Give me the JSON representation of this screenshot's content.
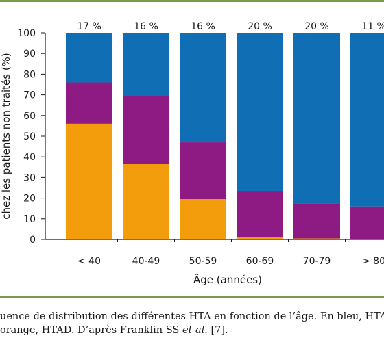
{
  "chart_data": {
    "type": "bar",
    "stacked": true,
    "categories": [
      "< 40",
      "40-49",
      "50-59",
      "60-69",
      "70-79",
      "> 80"
    ],
    "top_labels": [
      "17 %",
      "16 %",
      "16 %",
      "20 %",
      "20 %",
      "11 %"
    ],
    "series": [
      {
        "values": [
          56,
          36.5,
          19.5,
          1,
          0.5,
          0
        ],
        "color": "#f39c0c"
      },
      {
        "values": [
          20,
          33,
          27.5,
          22.5,
          17,
          16
        ],
        "color": "#8e1a84"
      },
      {
        "values": [
          24,
          30.5,
          53,
          76.5,
          82.5,
          84
        ],
        "color": "#0f6eb4"
      }
    ],
    "xlabel": "Âge (années)",
    "ylabel": "chez les patients non traités (%)",
    "ylim": [
      0,
      100
    ],
    "yticks": [
      0,
      10,
      20,
      30,
      40,
      50,
      60,
      70,
      80,
      90,
      100
    ],
    "grid": false
  },
  "caption": {
    "line1": "uence de distribution des différentes HTA en fonction de l’âge. En bleu, HTAS",
    "line2_start": "orange, HTAD. D’après Franklin SS ",
    "line2_italic": "et al.",
    "line2_end": " [7]."
  },
  "colors": {
    "rule": "#7c9a4e"
  }
}
